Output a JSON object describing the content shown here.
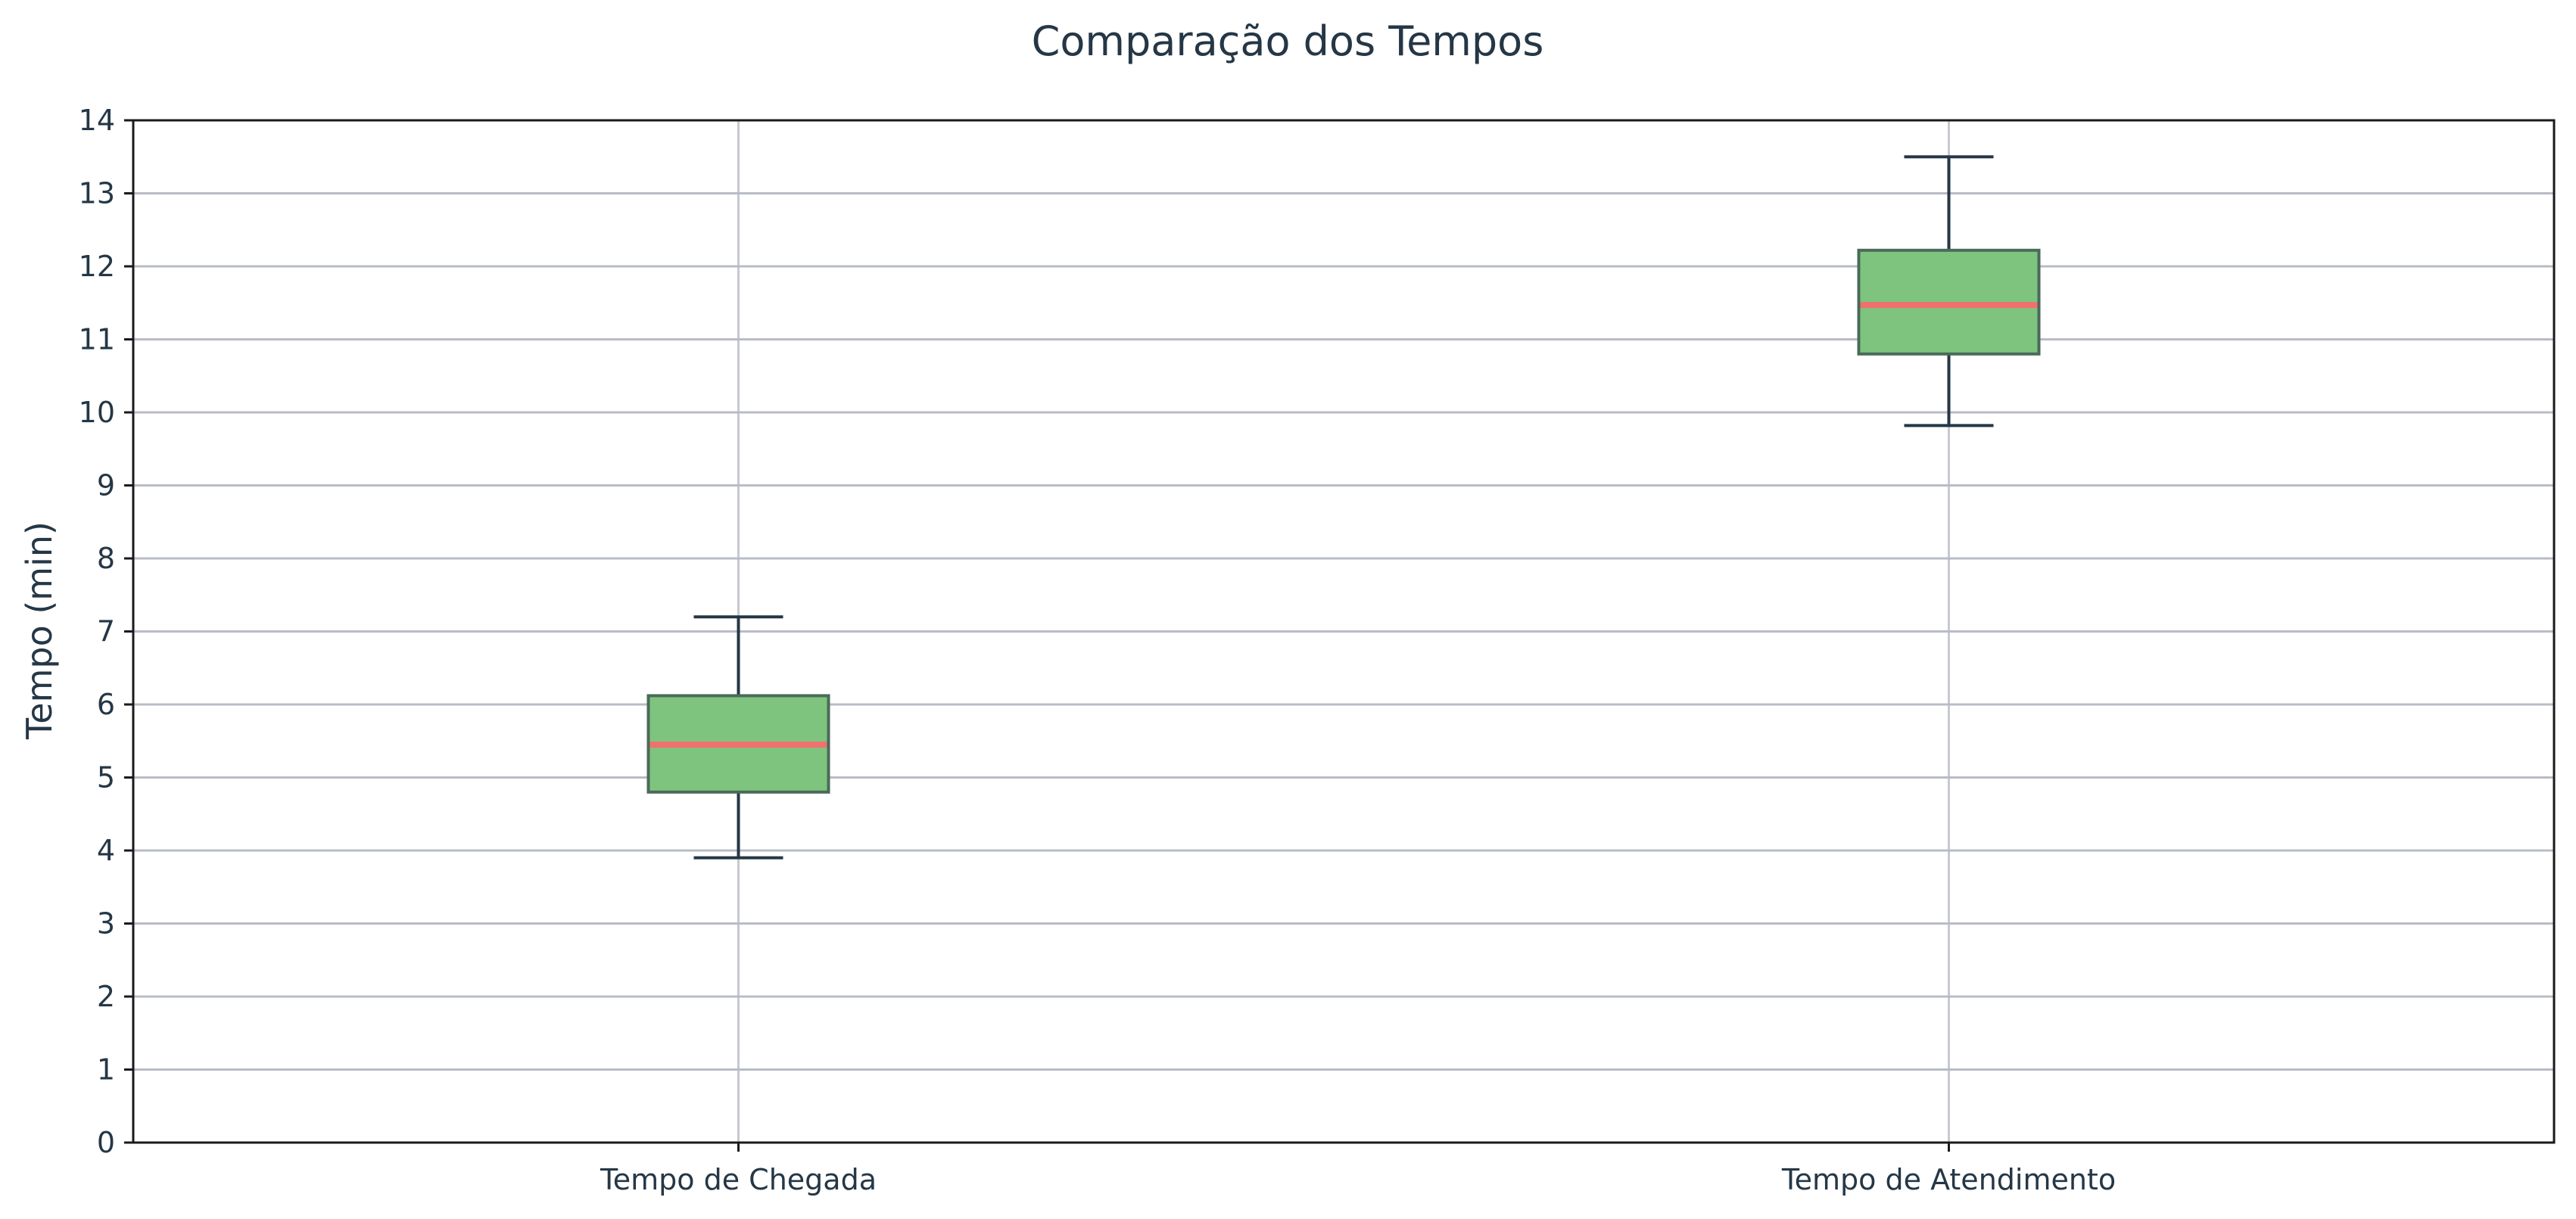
{
  "chart_data": {
    "type": "box",
    "title": "Comparação dos Tempos",
    "xlabel": "",
    "ylabel": "Tempo (min)",
    "ylim": [
      0,
      14
    ],
    "yticks": [
      0,
      1,
      2,
      3,
      4,
      5,
      6,
      7,
      8,
      9,
      10,
      11,
      12,
      13,
      14
    ],
    "grid": true,
    "categories": [
      "Tempo de Chegada",
      "Tempo de Atendimento"
    ],
    "boxes": [
      {
        "category": "Tempo de Chegada",
        "whisker_low": 3.9,
        "q1": 4.8,
        "median": 5.45,
        "q3": 6.12,
        "whisker_high": 7.2
      },
      {
        "category": "Tempo de Atendimento",
        "whisker_low": 9.82,
        "q1": 10.8,
        "median": 11.47,
        "q3": 12.22,
        "whisker_high": 13.5
      }
    ],
    "colors": {
      "box_fill": "#7ec47e",
      "box_edge": "#4a6a5a",
      "median": "#f07070",
      "whisker": "#253746",
      "text": "#253746"
    }
  }
}
